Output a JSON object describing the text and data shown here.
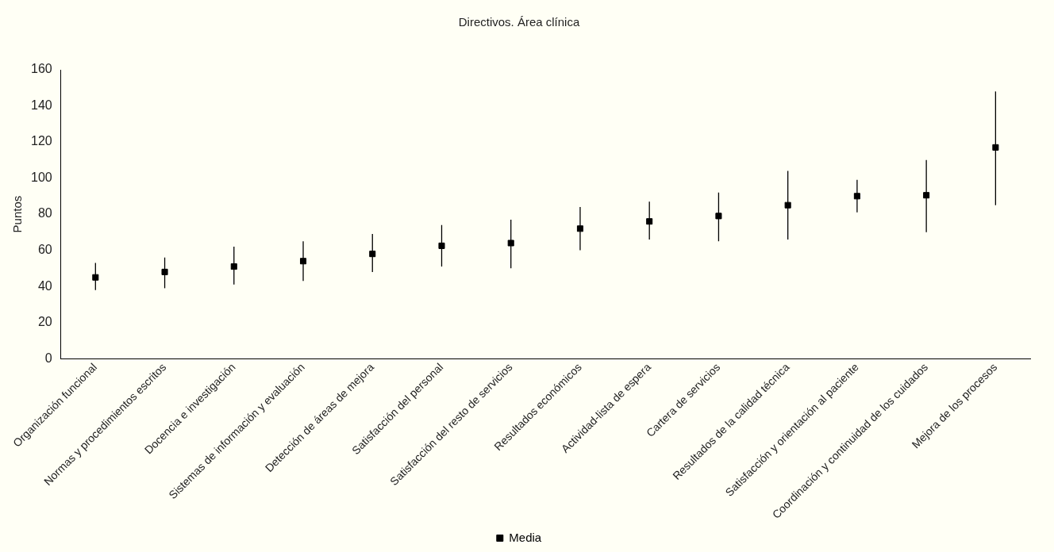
{
  "chart_data": {
    "type": "scatter",
    "title": "Directivos. Área clínica",
    "ylabel": "Puntos",
    "categories": [
      "Organización funcional",
      "Normas y procedimientos escritos",
      "Docencia e investigación",
      "Sistemas de información y evaluación",
      "Detección de áreas de mejora",
      "Satisfacción del personal",
      "Satisfacción del resto de servicios",
      "Resultados económicos",
      "Actividad-lista de espera",
      "Cartera de servicios",
      "Resultados de la calidad técnica",
      "Satisfacción y orientación al paciente",
      "Coordinación y continuidad de los cuidados",
      "Mejora de los procesos"
    ],
    "series": [
      {
        "name": "Media",
        "color": "#000000",
        "values": [
          45,
          48,
          51,
          54,
          58,
          62.5,
          64,
          72,
          76,
          79,
          85,
          90,
          90.5,
          117
        ],
        "errors": [
          [
            38,
            53
          ],
          [
            39,
            56
          ],
          [
            41,
            62
          ],
          [
            43,
            65
          ],
          [
            48,
            69
          ],
          [
            51,
            74
          ],
          [
            50,
            77
          ],
          [
            60,
            84
          ],
          [
            66,
            87
          ],
          [
            65,
            92
          ],
          [
            66,
            104
          ],
          [
            81,
            99
          ],
          [
            70,
            110
          ],
          [
            85,
            148
          ]
        ]
      }
    ],
    "ylim": [
      0,
      160
    ],
    "yticks": [
      0,
      20,
      40,
      60,
      80,
      100,
      120,
      140,
      160
    ],
    "grid": false,
    "legend": "bottom",
    "marker": "square"
  }
}
